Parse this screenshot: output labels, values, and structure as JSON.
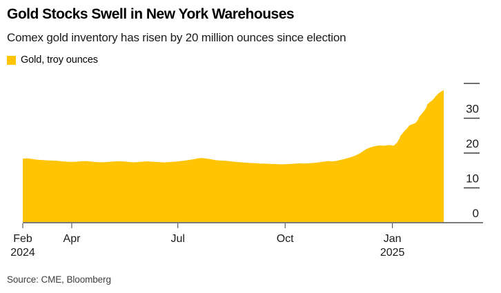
{
  "header": {
    "title": "Gold Stocks Swell in New York Warehouses",
    "subtitle": "Comex gold inventory has risen by 20 million ounces since election"
  },
  "legend": {
    "label": "Gold, troy ounces",
    "swatch_color": "#FFC403"
  },
  "source_line": "Source: CME, Bloomberg",
  "colors": {
    "area": "#FFC403",
    "axis_line": "#7a7a7a",
    "tick_mark": "#3d3d3d",
    "axis_text": "#1a1a1a"
  },
  "chart_data": {
    "type": "area",
    "title": "Gold Stocks Swell in New York Warehouses",
    "subtitle": "Comex gold inventory has risen by 20 million ounces since election",
    "ylabel": "",
    "xlabel": "",
    "unit": "million troy ounces",
    "legend_position": "top-left",
    "grid": "right-edge tick dashes only",
    "ylim": [
      0,
      40
    ],
    "y_ticks": {
      "dash_values": [
        10,
        20,
        30,
        40
      ],
      "label_values": [
        0,
        10,
        20,
        30
      ]
    },
    "x_range": [
      "2024-02-19",
      "2025-02-14"
    ],
    "x_ticks": [
      {
        "date": "2024-02-19",
        "label": "Feb",
        "year": "2024"
      },
      {
        "date": "2024-04-01",
        "label": "Apr",
        "year": ""
      },
      {
        "date": "2024-07-01",
        "label": "Jul",
        "year": ""
      },
      {
        "date": "2024-10-01",
        "label": "Oct",
        "year": ""
      },
      {
        "date": "2025-01-01",
        "label": "Jan",
        "year": "2025"
      }
    ],
    "series": [
      {
        "name": "Gold, troy ounces",
        "points": [
          [
            "2024-02-19",
            18.4
          ],
          [
            "2024-02-23",
            18.5
          ],
          [
            "2024-02-27",
            18.3
          ],
          [
            "2024-03-02",
            18.1
          ],
          [
            "2024-03-07",
            18.0
          ],
          [
            "2024-03-11",
            17.9
          ],
          [
            "2024-03-15",
            17.85
          ],
          [
            "2024-03-19",
            17.8
          ],
          [
            "2024-03-24",
            17.6
          ],
          [
            "2024-03-28",
            17.5
          ],
          [
            "2024-04-01",
            17.45
          ],
          [
            "2024-04-05",
            17.5
          ],
          [
            "2024-04-09",
            17.65
          ],
          [
            "2024-04-13",
            17.7
          ],
          [
            "2024-04-18",
            17.55
          ],
          [
            "2024-04-22",
            17.4
          ],
          [
            "2024-04-26",
            17.35
          ],
          [
            "2024-04-30",
            17.4
          ],
          [
            "2024-05-04",
            17.5
          ],
          [
            "2024-05-08",
            17.6
          ],
          [
            "2024-05-12",
            17.65
          ],
          [
            "2024-05-17",
            17.55
          ],
          [
            "2024-05-21",
            17.4
          ],
          [
            "2024-05-25",
            17.35
          ],
          [
            "2024-05-29",
            17.45
          ],
          [
            "2024-06-02",
            17.55
          ],
          [
            "2024-06-06",
            17.6
          ],
          [
            "2024-06-10",
            17.5
          ],
          [
            "2024-06-15",
            17.4
          ],
          [
            "2024-06-19",
            17.3
          ],
          [
            "2024-06-23",
            17.4
          ],
          [
            "2024-06-27",
            17.5
          ],
          [
            "2024-07-01",
            17.6
          ],
          [
            "2024-07-05",
            17.75
          ],
          [
            "2024-07-09",
            17.95
          ],
          [
            "2024-07-14",
            18.2
          ],
          [
            "2024-07-18",
            18.45
          ],
          [
            "2024-07-22",
            18.6
          ],
          [
            "2024-07-26",
            18.4
          ],
          [
            "2024-07-30",
            18.15
          ],
          [
            "2024-08-03",
            17.95
          ],
          [
            "2024-08-07",
            17.85
          ],
          [
            "2024-08-12",
            17.75
          ],
          [
            "2024-08-16",
            17.6
          ],
          [
            "2024-08-20",
            17.45
          ],
          [
            "2024-08-24",
            17.35
          ],
          [
            "2024-08-28",
            17.25
          ],
          [
            "2024-09-01",
            17.15
          ],
          [
            "2024-09-05",
            17.1
          ],
          [
            "2024-09-10",
            17.0
          ],
          [
            "2024-09-14",
            16.95
          ],
          [
            "2024-09-18",
            16.9
          ],
          [
            "2024-09-22",
            16.85
          ],
          [
            "2024-09-26",
            16.8
          ],
          [
            "2024-09-30",
            16.8
          ],
          [
            "2024-10-04",
            16.85
          ],
          [
            "2024-10-09",
            16.95
          ],
          [
            "2024-10-13",
            17.05
          ],
          [
            "2024-10-17",
            17.0
          ],
          [
            "2024-10-21",
            17.05
          ],
          [
            "2024-10-25",
            17.15
          ],
          [
            "2024-10-29",
            17.3
          ],
          [
            "2024-11-02",
            17.5
          ],
          [
            "2024-11-07",
            17.7
          ],
          [
            "2024-11-10",
            17.6
          ],
          [
            "2024-11-14",
            17.75
          ],
          [
            "2024-11-17",
            18.0
          ],
          [
            "2024-11-21",
            18.3
          ],
          [
            "2024-11-24",
            18.55
          ],
          [
            "2024-11-28",
            19.0
          ],
          [
            "2024-12-01",
            19.4
          ],
          [
            "2024-12-04",
            19.9
          ],
          [
            "2024-12-07",
            20.6
          ],
          [
            "2024-12-10",
            21.2
          ],
          [
            "2024-12-13",
            21.6
          ],
          [
            "2024-12-16",
            21.9
          ],
          [
            "2024-12-19",
            22.1
          ],
          [
            "2024-12-21",
            22.2
          ],
          [
            "2024-12-24",
            22.1
          ],
          [
            "2024-12-27",
            22.2
          ],
          [
            "2024-12-30",
            22.3
          ],
          [
            "2025-01-02",
            22.1
          ],
          [
            "2025-01-05",
            23.0
          ],
          [
            "2025-01-07",
            24.2
          ],
          [
            "2025-01-08",
            25.0
          ],
          [
            "2025-01-10",
            25.8
          ],
          [
            "2025-01-12",
            26.6
          ],
          [
            "2025-01-14",
            27.2
          ],
          [
            "2025-01-15",
            27.8
          ],
          [
            "2025-01-17",
            28.2
          ],
          [
            "2025-01-19",
            28.4
          ],
          [
            "2025-01-21",
            28.7
          ],
          [
            "2025-01-23",
            29.6
          ],
          [
            "2025-01-24",
            30.4
          ],
          [
            "2025-01-26",
            31.2
          ],
          [
            "2025-01-28",
            32.0
          ],
          [
            "2025-01-30",
            33.0
          ],
          [
            "2025-01-31",
            34.0
          ],
          [
            "2025-02-02",
            34.6
          ],
          [
            "2025-02-04",
            35.1
          ],
          [
            "2025-02-06",
            35.8
          ],
          [
            "2025-02-07",
            36.3
          ],
          [
            "2025-02-09",
            37.0
          ],
          [
            "2025-02-11",
            37.5
          ],
          [
            "2025-02-13",
            37.9
          ],
          [
            "2025-02-14",
            38.1
          ]
        ]
      }
    ]
  }
}
